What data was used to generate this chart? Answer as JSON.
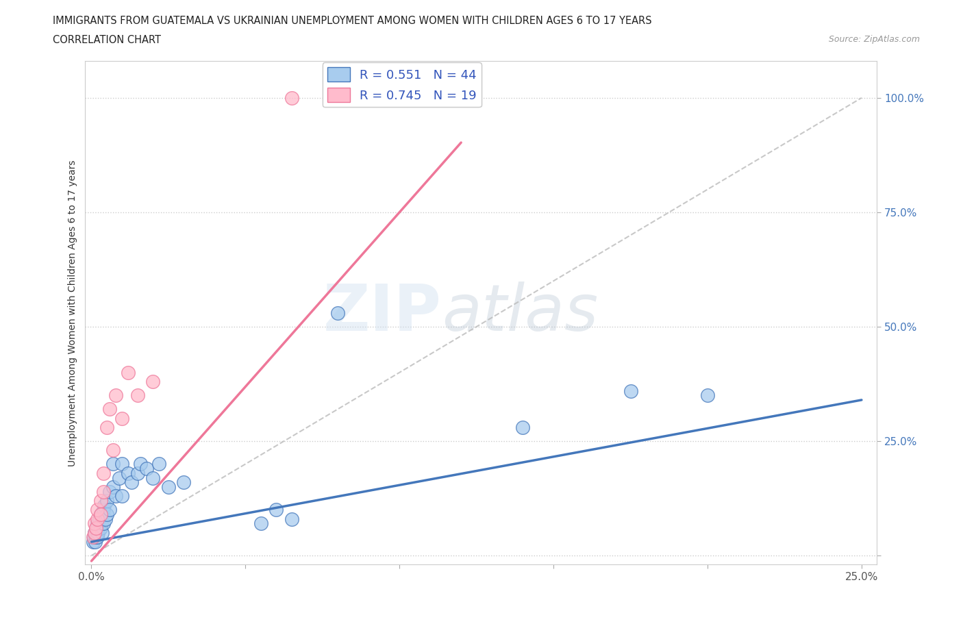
{
  "title_line1": "IMMIGRANTS FROM GUATEMALA VS UKRAINIAN UNEMPLOYMENT AMONG WOMEN WITH CHILDREN AGES 6 TO 17 YEARS",
  "title_line2": "CORRELATION CHART",
  "source_text": "Source: ZipAtlas.com",
  "ylabel": "Unemployment Among Women with Children Ages 6 to 17 years",
  "xlim": [
    -0.002,
    0.255
  ],
  "ylim": [
    -0.02,
    1.08
  ],
  "watermark_zip": "ZIP",
  "watermark_atlas": "atlas",
  "legend_r1": "R = 0.551",
  "legend_n1": "N = 44",
  "legend_r2": "R = 0.745",
  "legend_n2": "N = 19",
  "blue_color": "#A8CCEE",
  "pink_color": "#FFBBCC",
  "blue_line_color": "#4477BB",
  "pink_line_color": "#EE7799",
  "gray_dash_color": "#BBBBBB",
  "background_color": "#FFFFFF",
  "grid_color": "#CCCCCC",
  "guatemala_x": [
    0.0005,
    0.0008,
    0.001,
    0.0012,
    0.0015,
    0.0018,
    0.002,
    0.002,
    0.0022,
    0.0025,
    0.003,
    0.003,
    0.0032,
    0.0035,
    0.004,
    0.004,
    0.0042,
    0.0045,
    0.005,
    0.005,
    0.006,
    0.006,
    0.007,
    0.007,
    0.008,
    0.009,
    0.01,
    0.01,
    0.012,
    0.013,
    0.015,
    0.016,
    0.018,
    0.02,
    0.022,
    0.025,
    0.03,
    0.055,
    0.06,
    0.065,
    0.08,
    0.14,
    0.175,
    0.2
  ],
  "guatemala_y": [
    0.03,
    0.04,
    0.05,
    0.03,
    0.04,
    0.06,
    0.04,
    0.07,
    0.05,
    0.08,
    0.06,
    0.09,
    0.07,
    0.05,
    0.1,
    0.07,
    0.11,
    0.08,
    0.09,
    0.12,
    0.1,
    0.14,
    0.2,
    0.15,
    0.13,
    0.17,
    0.13,
    0.2,
    0.18,
    0.16,
    0.18,
    0.2,
    0.19,
    0.17,
    0.2,
    0.15,
    0.16,
    0.07,
    0.1,
    0.08,
    0.53,
    0.28,
    0.36,
    0.35
  ],
  "ukrainian_x": [
    0.0005,
    0.001,
    0.001,
    0.0015,
    0.002,
    0.002,
    0.003,
    0.003,
    0.004,
    0.004,
    0.005,
    0.006,
    0.007,
    0.008,
    0.01,
    0.012,
    0.015,
    0.02,
    0.065
  ],
  "ukrainian_y": [
    0.04,
    0.05,
    0.07,
    0.06,
    0.08,
    0.1,
    0.09,
    0.12,
    0.14,
    0.18,
    0.28,
    0.32,
    0.23,
    0.35,
    0.3,
    0.4,
    0.35,
    0.38,
    1.0
  ],
  "blue_trend": [
    0.0,
    0.03,
    0.25,
    0.34
  ],
  "pink_trend": [
    -0.005,
    -0.05,
    0.1,
    0.75
  ],
  "gray_dash": [
    0.0,
    0.0,
    0.25,
    1.0
  ]
}
